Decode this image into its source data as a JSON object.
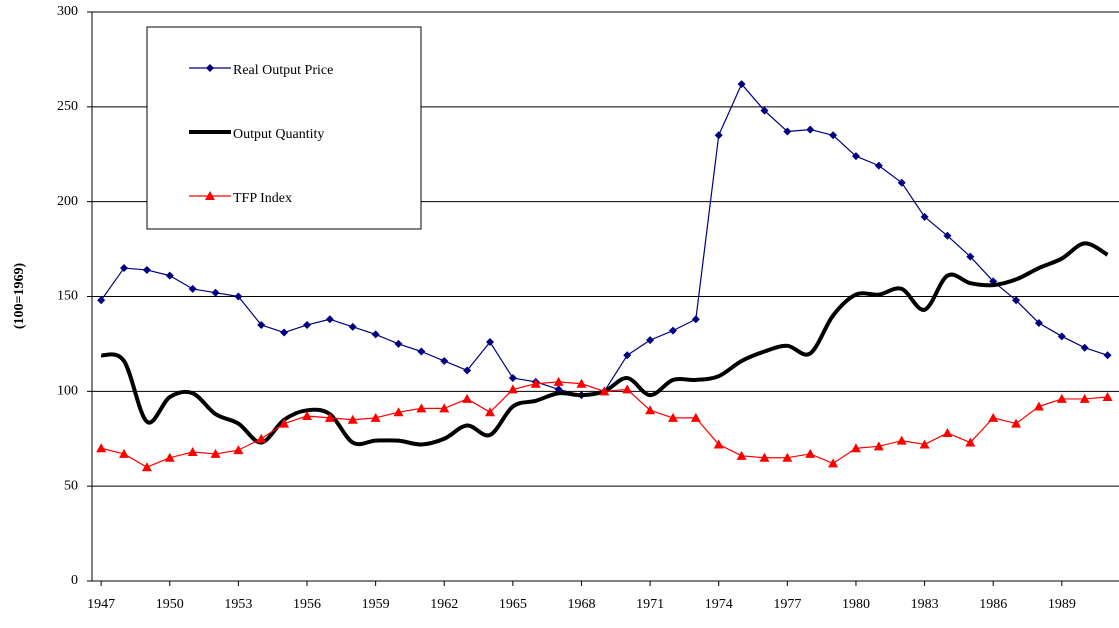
{
  "chart_data": {
    "type": "line",
    "y_label": "(100=1969)",
    "x": [
      1947,
      1948,
      1949,
      1950,
      1951,
      1952,
      1953,
      1954,
      1955,
      1956,
      1957,
      1958,
      1959,
      1960,
      1961,
      1962,
      1963,
      1964,
      1965,
      1966,
      1967,
      1968,
      1969,
      1970,
      1971,
      1972,
      1973,
      1974,
      1975,
      1976,
      1977,
      1978,
      1979,
      1980,
      1981,
      1982,
      1983,
      1984,
      1985,
      1986,
      1987,
      1988,
      1989,
      1990,
      1991
    ],
    "series": [
      {
        "name": "Real Output Price",
        "color": "#000080",
        "marker": "diamond",
        "smooth": false,
        "values": [
          148,
          165,
          164,
          161,
          154,
          152,
          150,
          135,
          131,
          135,
          138,
          134,
          130,
          125,
          121,
          116,
          111,
          126,
          107,
          105,
          101,
          98,
          100,
          119,
          127,
          132,
          138,
          235,
          262,
          248,
          237,
          238,
          235,
          224,
          219,
          210,
          192,
          182,
          171,
          158,
          148,
          136,
          129,
          123,
          119
        ]
      },
      {
        "name": "Output Quantity",
        "color": "#000000",
        "marker": "none",
        "smooth": true,
        "values": [
          119,
          116,
          84,
          97,
          99,
          88,
          83,
          73,
          85,
          90,
          88,
          73,
          74,
          74,
          72,
          75,
          82,
          77,
          92,
          95,
          99,
          98,
          100,
          107,
          98,
          106,
          106,
          108,
          116,
          121,
          124,
          120,
          140,
          151,
          151,
          154,
          143,
          161,
          157,
          156,
          159,
          165,
          170,
          178,
          172
        ]
      },
      {
        "name": "TFP Index",
        "color": "#ff0000",
        "marker": "triangle",
        "smooth": false,
        "values": [
          70,
          67,
          60,
          65,
          68,
          67,
          69,
          75,
          83,
          87,
          86,
          85,
          86,
          89,
          91,
          91,
          96,
          89,
          101,
          104,
          105,
          104,
          100,
          101,
          90,
          86,
          86,
          72,
          66,
          65,
          65,
          67,
          62,
          70,
          71,
          74,
          72,
          78,
          73,
          86,
          83,
          92,
          96,
          96,
          97
        ]
      }
    ],
    "xlim": [
      1946.6,
      1991.5
    ],
    "xticks": [
      1947,
      1950,
      1953,
      1956,
      1959,
      1962,
      1965,
      1968,
      1971,
      1974,
      1977,
      1980,
      1983,
      1986,
      1989
    ],
    "ylim": [
      0,
      300
    ],
    "yticks": [
      0,
      50,
      100,
      150,
      200,
      250,
      300
    ],
    "grid": true,
    "legend": "top-left"
  }
}
